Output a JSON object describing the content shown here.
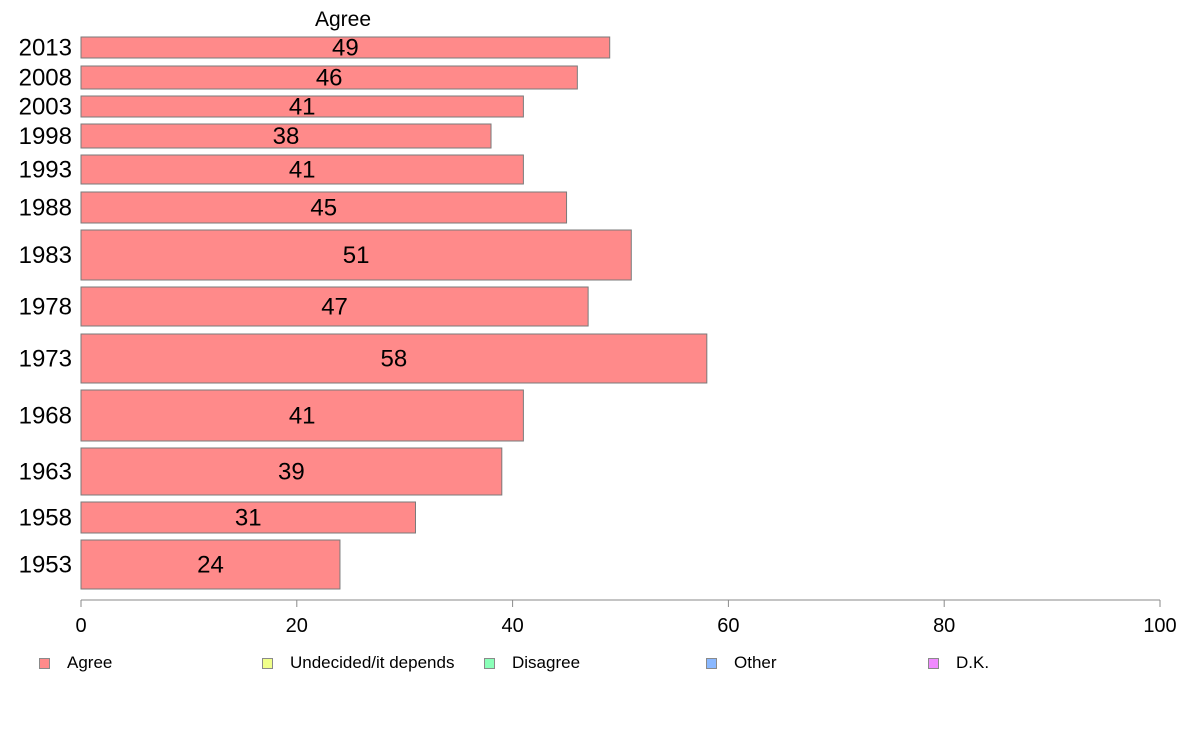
{
  "chart_data": {
    "type": "bar",
    "orientation": "horizontal",
    "title": "Agree",
    "categories": [
      "2013",
      "2008",
      "2003",
      "1998",
      "1993",
      "1988",
      "1983",
      "1978",
      "1973",
      "1968",
      "1963",
      "1958",
      "1953"
    ],
    "values": [
      49,
      46,
      41,
      38,
      41,
      45,
      51,
      47,
      58,
      41,
      39,
      31,
      24
    ],
    "xlim": [
      0,
      100
    ],
    "xticks": [
      0,
      20,
      40,
      60,
      80,
      100
    ],
    "grid": false,
    "legend_placement": "bottom",
    "series": [
      {
        "name": "Agree",
        "values": [
          49,
          46,
          41,
          38,
          41,
          45,
          51,
          47,
          58,
          41,
          39,
          31,
          24
        ],
        "color": "#ff8a8a"
      }
    ]
  },
  "legend": [
    {
      "label": "Agree",
      "color": "#ff8a8a"
    },
    {
      "label": "Undecided/it depends",
      "color": "#f0ff8a"
    },
    {
      "label": "Disagree",
      "color": "#8affb8"
    },
    {
      "label": "Other",
      "color": "#8ab8ff"
    },
    {
      "label": "D.K.",
      "color": "#f08aff"
    }
  ]
}
